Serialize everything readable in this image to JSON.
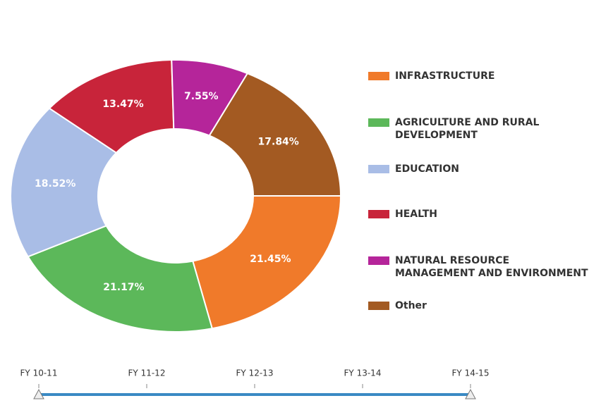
{
  "chart_data": {
    "type": "donut",
    "categories": [
      "INFRASTRUCTURE",
      "AGRICULTURE AND RURAL DEVELOPMENT",
      "EDUCATION",
      "HEALTH",
      "NATURAL RESOURCE MANAGEMENT AND ENVIRONMENT",
      "Other"
    ],
    "values": [
      21.45,
      21.17,
      18.52,
      13.47,
      7.55,
      17.84
    ],
    "value_labels": [
      "21.45%",
      "21.17%",
      "18.52%",
      "13.47%",
      "7.55%",
      "17.84%"
    ],
    "colors": [
      "#f07a2a",
      "#5cb85a",
      "#a9bde6",
      "#c8243a",
      "#b5259a",
      "#a35a22"
    ],
    "legend": "right"
  },
  "timeline": {
    "labels": [
      "FY 10-11",
      "FY 11-12",
      "FY 12-13",
      "FY 13-14",
      "FY 14-15"
    ]
  }
}
